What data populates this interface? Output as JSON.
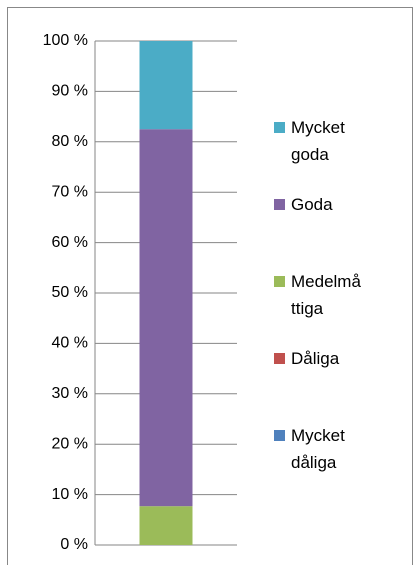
{
  "chart_data": {
    "type": "stacked_bar",
    "categories": [
      null
    ],
    "series": [
      {
        "name": "Mycket dåliga",
        "color": "#4f81bd",
        "values": [
          0
        ]
      },
      {
        "name": "Dåliga",
        "color": "#c0504d",
        "values": [
          0
        ]
      },
      {
        "name": "Medelmåttiga",
        "color": "#9bbb59",
        "values": [
          7.7
        ]
      },
      {
        "name": "Goda",
        "color": "#8064a2",
        "values": [
          74.8
        ]
      },
      {
        "name": "Mycket goda",
        "color": "#4bacc6",
        "values": [
          17.5
        ]
      }
    ],
    "ylim": [
      0,
      100
    ],
    "yticks": [
      {
        "value": 0,
        "label": "0 %"
      },
      {
        "value": 10,
        "label": "10 %"
      },
      {
        "value": 20,
        "label": "20 %"
      },
      {
        "value": 30,
        "label": "30 %"
      },
      {
        "value": 40,
        "label": "40 %"
      },
      {
        "value": 50,
        "label": "50 %"
      },
      {
        "value": 60,
        "label": "60 %"
      },
      {
        "value": 70,
        "label": "70 %"
      },
      {
        "value": 80,
        "label": "80 %"
      },
      {
        "value": 90,
        "label": "90 %"
      },
      {
        "value": 100,
        "label": "100 %"
      }
    ],
    "grid": true,
    "legend": "right"
  }
}
